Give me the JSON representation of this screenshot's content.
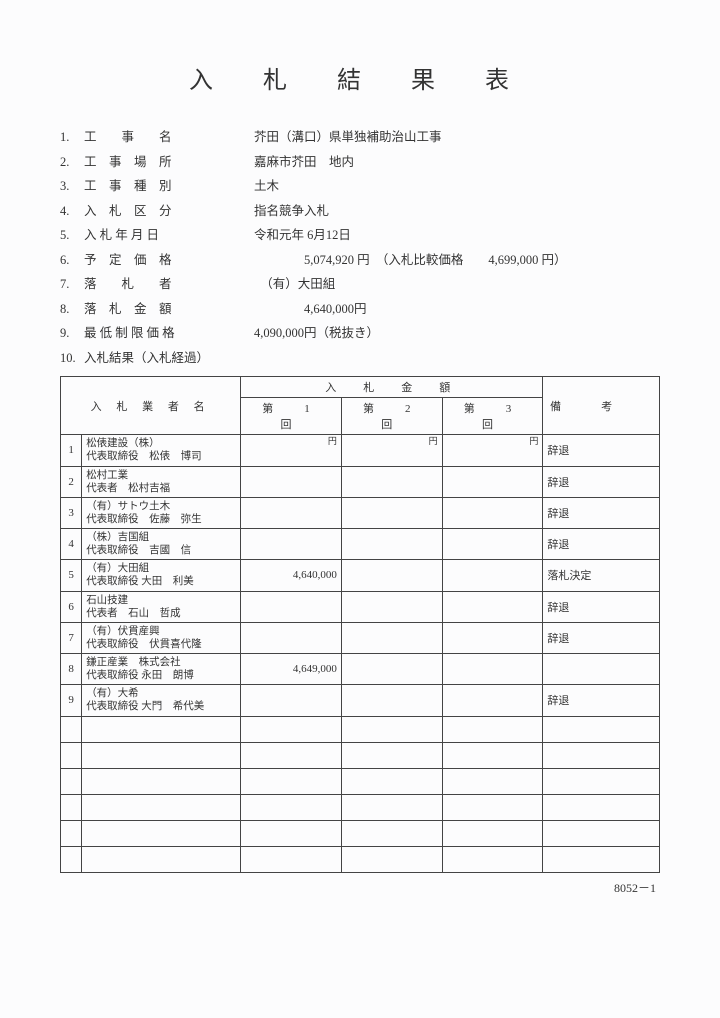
{
  "title": "入 札 結 果 表",
  "info": [
    {
      "num": "1.",
      "label": "工　　事　　名",
      "value": "芥田（溝口）県単独補助治山工事"
    },
    {
      "num": "2.",
      "label": "工　事　場　所",
      "value": "嘉麻市芥田　地内"
    },
    {
      "num": "3.",
      "label": "工　事　種　別",
      "value": "土木"
    },
    {
      "num": "4.",
      "label": "入　札　区　分",
      "value": "指名競争入札"
    },
    {
      "num": "5.",
      "label": "入 札 年 月 日",
      "value": "令和元年 6月12日"
    },
    {
      "num": "6.",
      "label": "予　定　価　格",
      "value": "　　　　5,074,920 円　（入札比較価格　　4,699,000 円）"
    },
    {
      "num": "7.",
      "label": "落　　札　　者",
      "value": "　（有）大田組"
    },
    {
      "num": "8.",
      "label": "落　札　金　額",
      "value": "　　　　4,640,000円"
    },
    {
      "num": "9.",
      "label": "最 低 制 限 価 格",
      "value": "4,090,000円（税抜き）"
    },
    {
      "num": "10.",
      "label": "入札結果（入札経過）",
      "value": ""
    }
  ],
  "table": {
    "header_bidder": "入 札 業 者 名",
    "header_amount": "入　札　金　額",
    "header_remark": "備考",
    "round1": "第　1　回",
    "round2": "第　2　回",
    "round3": "第　3　回",
    "yen": "円",
    "rows": [
      {
        "n": "1",
        "name1": "松俵建設（株）",
        "name2": "代表取締役　松俵　博司",
        "r1": "",
        "r2": "",
        "r3": "",
        "remark": "辞退"
      },
      {
        "n": "2",
        "name1": "松村工業",
        "name2": "代表者　松村吉福",
        "r1": "",
        "r2": "",
        "r3": "",
        "remark": "辞退"
      },
      {
        "n": "3",
        "name1": "（有）サトウ土木",
        "name2": "代表取締役　佐藤　弥生",
        "r1": "",
        "r2": "",
        "r3": "",
        "remark": "辞退"
      },
      {
        "n": "4",
        "name1": "（株）吉国組",
        "name2": "代表取締役　吉國　信",
        "r1": "",
        "r2": "",
        "r3": "",
        "remark": "辞退"
      },
      {
        "n": "5",
        "name1": "（有）大田組",
        "name2": "代表取締役 大田　利美",
        "r1": "4,640,000",
        "r2": "",
        "r3": "",
        "remark": "落札決定"
      },
      {
        "n": "6",
        "name1": "石山技建",
        "name2": "代表者　石山　哲成",
        "r1": "",
        "r2": "",
        "r3": "",
        "remark": "辞退"
      },
      {
        "n": "7",
        "name1": "（有）伏貫産興",
        "name2": "代表取締役　伏貫喜代隆",
        "r1": "",
        "r2": "",
        "r3": "",
        "remark": "辞退"
      },
      {
        "n": "8",
        "name1": "鎌正産業　株式会社",
        "name2": "代表取締役 永田　朗博",
        "r1": "4,649,000",
        "r2": "",
        "r3": "",
        "remark": ""
      },
      {
        "n": "9",
        "name1": "（有）大希",
        "name2": "代表取締役 大門　希代美",
        "r1": "",
        "r2": "",
        "r3": "",
        "remark": "辞退"
      }
    ],
    "empty_rows": 6
  },
  "footer": "8052－1",
  "colors": {
    "border": "#444444",
    "text": "#333333",
    "bg": "#fcfcfd"
  }
}
